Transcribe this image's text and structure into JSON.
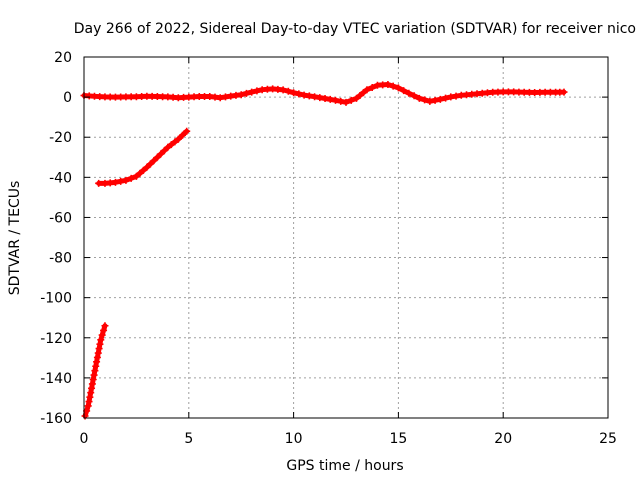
{
  "chart_data": {
    "type": "scatter",
    "title": "Day 266 of 2022, Sidereal Day-to-day VTEC variation (SDTVAR) for receiver nico",
    "xlabel": "GPS time / hours",
    "ylabel": "SDTVAR / TECUs",
    "xlim": [
      0,
      25
    ],
    "ylim": [
      -160,
      20
    ],
    "xticks": [
      0,
      5,
      10,
      15,
      20,
      25
    ],
    "yticks": [
      20,
      0,
      -20,
      -40,
      -60,
      -80,
      -100,
      -120,
      -140,
      -160
    ],
    "xtick_labels": [
      "0",
      "5",
      "10",
      "15",
      "20",
      "25"
    ],
    "ytick_labels": [
      "20",
      "0",
      "-20",
      "-40",
      "-60",
      "-80",
      "-100",
      "-120",
      "-140",
      "-160"
    ],
    "grid": true,
    "marker": "plus",
    "colors": {
      "series": "#ff0000",
      "grid": "#a0a0a0",
      "axis": "#000000"
    },
    "series": [
      {
        "points": [
          [
            0.0,
            0.8
          ],
          [
            0.5,
            0.4
          ],
          [
            1.0,
            0.1
          ],
          [
            1.5,
            0.0
          ],
          [
            2.0,
            0.1
          ],
          [
            2.5,
            0.2
          ],
          [
            3.0,
            0.4
          ],
          [
            3.5,
            0.3
          ],
          [
            4.0,
            0.1
          ],
          [
            4.5,
            -0.3
          ],
          [
            5.0,
            0.0
          ],
          [
            5.5,
            0.3
          ],
          [
            6.0,
            0.3
          ],
          [
            6.5,
            -0.3
          ],
          [
            7.0,
            0.5
          ],
          [
            7.5,
            1.2
          ],
          [
            8.0,
            2.5
          ],
          [
            8.5,
            3.7
          ],
          [
            9.0,
            4.1
          ],
          [
            9.5,
            3.6
          ],
          [
            10.0,
            2.2
          ],
          [
            10.5,
            1.0
          ],
          [
            11.0,
            0.2
          ],
          [
            11.5,
            -0.7
          ],
          [
            12.0,
            -1.6
          ],
          [
            12.5,
            -2.6
          ],
          [
            13.0,
            -0.6
          ],
          [
            13.5,
            3.7
          ],
          [
            14.0,
            5.9
          ],
          [
            14.5,
            6.3
          ],
          [
            15.0,
            4.6
          ],
          [
            15.5,
            1.9
          ],
          [
            16.0,
            -0.6
          ],
          [
            16.5,
            -2.1
          ],
          [
            17.0,
            -1.1
          ],
          [
            17.5,
            0.1
          ],
          [
            18.0,
            0.9
          ],
          [
            18.5,
            1.4
          ],
          [
            19.0,
            1.9
          ],
          [
            19.5,
            2.4
          ],
          [
            20.0,
            2.6
          ],
          [
            20.5,
            2.6
          ],
          [
            21.0,
            2.4
          ],
          [
            21.5,
            2.3
          ],
          [
            22.0,
            2.4
          ],
          [
            22.5,
            2.4
          ],
          [
            22.9,
            2.5
          ]
        ]
      },
      {
        "points": [
          [
            0.7,
            -43.0
          ],
          [
            1.0,
            -43.0
          ],
          [
            1.5,
            -42.5
          ],
          [
            2.0,
            -41.5
          ],
          [
            2.5,
            -39.5
          ],
          [
            3.0,
            -35.0
          ],
          [
            3.5,
            -30.0
          ],
          [
            4.0,
            -25.0
          ],
          [
            4.5,
            -21.0
          ],
          [
            4.9,
            -17.0
          ]
        ]
      },
      {
        "points": [
          [
            0.05,
            -159.0
          ],
          [
            0.2,
            -154.0
          ],
          [
            0.4,
            -143.0
          ],
          [
            0.6,
            -132.0
          ],
          [
            0.8,
            -121.0
          ],
          [
            1.0,
            -114.0
          ]
        ]
      }
    ]
  }
}
